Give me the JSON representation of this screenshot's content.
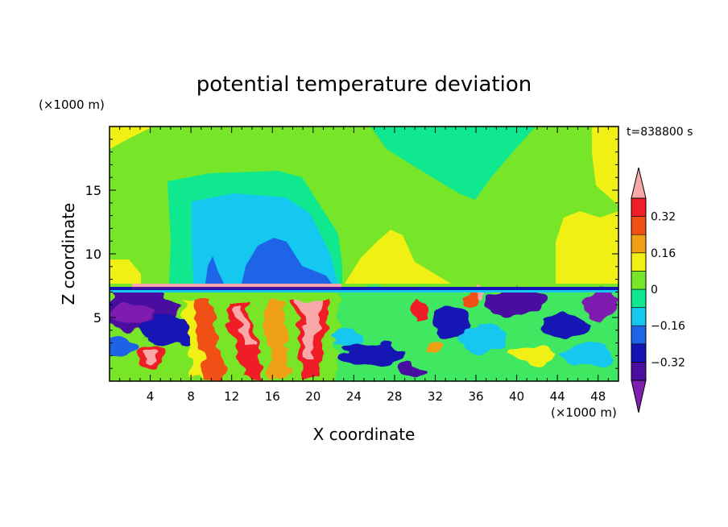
{
  "chart_data": {
    "type": "heatmap",
    "title": "potential temperature deviation",
    "xlabel": "X coordinate",
    "ylabel": "Z coordinate",
    "x_unit": "(×1000 m)",
    "y_unit": "(×1000 m)",
    "time_label": "t=838800 s",
    "xlim": [
      0,
      50
    ],
    "ylim": [
      0,
      20
    ],
    "x_ticks": [
      "4",
      "8",
      "12",
      "16",
      "20",
      "24",
      "28",
      "32",
      "36",
      "40",
      "44",
      "48"
    ],
    "y_ticks": [
      "5",
      "10",
      "15"
    ],
    "colorbar": {
      "levels": [
        -0.4,
        -0.32,
        -0.24,
        -0.16,
        -0.08,
        0,
        0.08,
        0.16,
        0.24,
        0.32,
        0.4
      ],
      "labels": [
        "0.32",
        "0.16",
        "0",
        "-0.16",
        "-0.32"
      ],
      "label_values": [
        0.32,
        0.16,
        0,
        -0.16,
        -0.32
      ],
      "colors": [
        "#7e1fb0",
        "#4a0fa0",
        "#1414b4",
        "#1e64e6",
        "#14c8f0",
        "#10e890",
        "#78e628",
        "#f0f014",
        "#f0a014",
        "#f05014",
        "#f01e28",
        "#f8a8a8"
      ]
    }
  }
}
